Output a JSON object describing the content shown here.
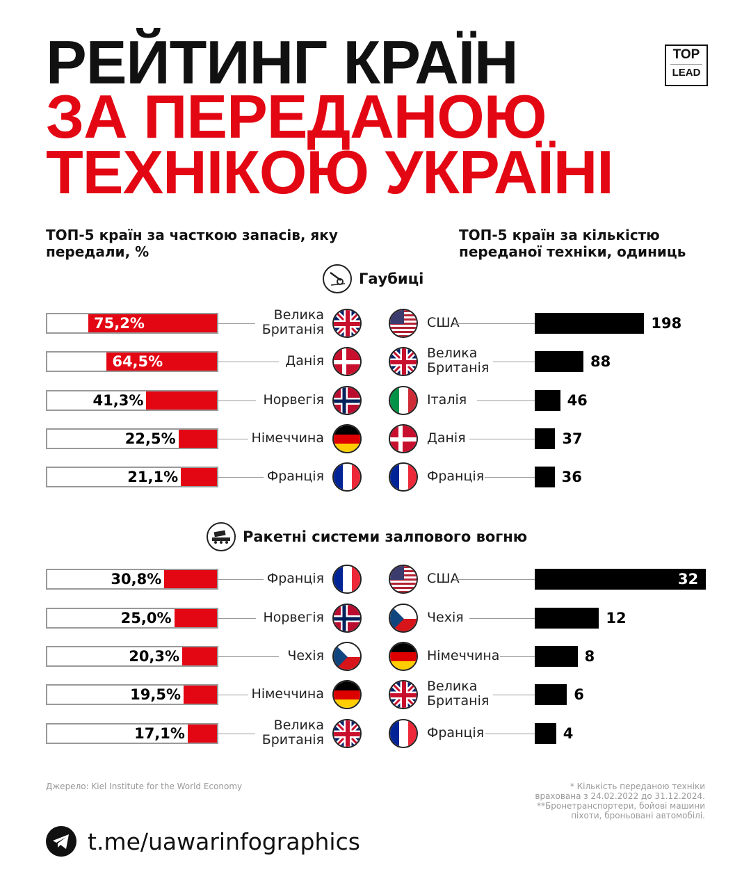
{
  "title": {
    "line1": "РЕЙТИНГ КРАЇН",
    "line2": "ЗА ПЕРЕДАНОЮ",
    "line3": "ТЕХНІКОЮ УКРАЇНІ"
  },
  "logo": {
    "top": "TOP",
    "bottom": "LEAD"
  },
  "subtitles": {
    "left": "ТОП-5 країн за часткою запасів, яку передали, %",
    "right": "ТОП-5 країн за кількістю переданої техніки, одиниць"
  },
  "colors": {
    "accent": "#e30613",
    "count_bar": "#000000"
  },
  "chart_data": [
    {
      "type": "bar",
      "title": "Гаубиці",
      "icon": "howitzer-icon",
      "share": {
        "unit": "%",
        "rows": [
          {
            "country": "Велика Британія",
            "flag": "uk",
            "value": 75.2,
            "label": "75,2%"
          },
          {
            "country": "Данія",
            "flag": "dk",
            "value": 64.5,
            "label": "64,5%"
          },
          {
            "country": "Норвегія",
            "flag": "no",
            "value": 41.3,
            "label": "41,3%"
          },
          {
            "country": "Німеччина",
            "flag": "de",
            "value": 22.5,
            "label": "22,5%"
          },
          {
            "country": "Франція",
            "flag": "fr",
            "value": 21.1,
            "label": "21,1%"
          }
        ]
      },
      "count": {
        "rows": [
          {
            "country": "США",
            "flag": "us",
            "value": 198,
            "label": "198"
          },
          {
            "country": "Велика Британія",
            "flag": "uk",
            "value": 88,
            "label": "88"
          },
          {
            "country": "Італія",
            "flag": "it",
            "value": 46,
            "label": "46"
          },
          {
            "country": "Данія",
            "flag": "dk",
            "value": 37,
            "label": "37"
          },
          {
            "country": "Франція",
            "flag": "fr",
            "value": 36,
            "label": "36"
          }
        ]
      }
    },
    {
      "type": "bar",
      "title": "Ракетні системи залпового вогню",
      "icon": "rocket-launcher-icon",
      "share": {
        "unit": "%",
        "rows": [
          {
            "country": "Франція",
            "flag": "fr",
            "value": 30.8,
            "label": "30,8%"
          },
          {
            "country": "Норвегія",
            "flag": "no",
            "value": 25.0,
            "label": "25,0%"
          },
          {
            "country": "Чехія",
            "flag": "cz",
            "value": 20.3,
            "label": "20,3%"
          },
          {
            "country": "Німеччина",
            "flag": "de",
            "value": 19.5,
            "label": "19,5%"
          },
          {
            "country": "Велика Британія",
            "flag": "uk",
            "value": 17.1,
            "label": "17,1%"
          }
        ]
      },
      "count": {
        "rows": [
          {
            "country": "США",
            "flag": "us",
            "value": 32,
            "label": "32"
          },
          {
            "country": "Чехія",
            "flag": "cz",
            "value": 12,
            "label": "12"
          },
          {
            "country": "Німеччина",
            "flag": "de",
            "value": 8,
            "label": "8"
          },
          {
            "country": "Велика Британія",
            "flag": "uk",
            "value": 6,
            "label": "6"
          },
          {
            "country": "Франція",
            "flag": "fr",
            "value": 4,
            "label": "4"
          }
        ]
      }
    }
  ],
  "footer": {
    "source": "Джерело: Kiel Institute for the World Economy",
    "note1": "* Кількість переданою техніки",
    "note2": "врахована з 24.02.2022 до 31.12.2024.",
    "note3": "**Бронетранспортери, бойові машини",
    "note4": "піхоти, броньовані автомобілі.",
    "link": "t.me/uawarinfographics"
  }
}
